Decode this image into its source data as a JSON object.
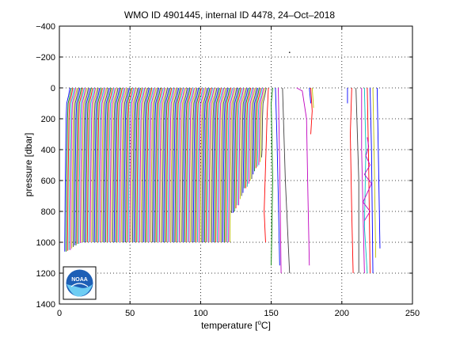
{
  "colors": {
    "series_palette": [
      "#0000ff",
      "#008000",
      "#ff0000",
      "#00bfbf",
      "#bf00bf",
      "#bfbf00",
      "#404040"
    ],
    "axis": "#000000",
    "logo_blue": "#1d5fb6",
    "logo_light": "#6ecdf3"
  },
  "logo": {
    "text": "NOAA",
    "icon": "noaa-logo-icon"
  },
  "chart_data": {
    "type": "line",
    "title": "WMO ID 4901445, internal ID 4478, 24–Oct–2018",
    "xlabel": "temperature [",
    "xlabel_sup": "o",
    "xlabel_end": "C]",
    "ylabel": "pressure [dbar]",
    "xlim": [
      0,
      250
    ],
    "ylim": [
      1400,
      -400
    ],
    "y_reversed": true,
    "grid": true,
    "x_ticks": [
      0,
      50,
      100,
      150,
      200,
      250
    ],
    "x_tick_labels": [
      "0",
      "50",
      "100",
      "150",
      "200",
      "250"
    ],
    "y_ticks": [
      -400,
      -200,
      0,
      200,
      400,
      600,
      800,
      1000,
      1200,
      1400
    ],
    "y_tick_labels": [
      "−400",
      "−200",
      "0",
      "200",
      "400",
      "600",
      "800",
      "1000",
      "1200",
      "1400"
    ],
    "main_group": {
      "description_count": 140,
      "x_start": 4,
      "x_step": 1,
      "profile_shape_temperature_offsets": [
        [
          0,
          3.5
        ],
        [
          50,
          2.5
        ],
        [
          100,
          1.2
        ],
        [
          200,
          0.8
        ],
        [
          400,
          0.5
        ],
        [
          600,
          0.2
        ],
        [
          800,
          0
        ],
        [
          1000,
          -0.2
        ]
      ],
      "bottom_pressures": [
        1060,
        1060,
        1055,
        1050,
        1050,
        1040,
        1030,
        1020,
        1020,
        1010,
        1010,
        1005,
        1000,
        1000,
        1000,
        1000,
        1000,
        1000,
        1000,
        1000,
        1000,
        1000,
        1000,
        1000,
        1000,
        1000,
        1000,
        1000,
        1000,
        1000,
        1000,
        1000,
        1000,
        1000,
        1000,
        1000,
        1000,
        1000,
        1000,
        1000,
        1000,
        1000,
        1000,
        1000,
        1000,
        1000,
        1000,
        1000,
        1000,
        1000,
        1000,
        1000,
        1000,
        1000,
        1000,
        1000,
        1000,
        1000,
        1000,
        1000,
        1000,
        1000,
        1000,
        1000,
        1000,
        1000,
        1000,
        1000,
        1000,
        1000,
        1000,
        1000,
        1000,
        1000,
        1000,
        1000,
        1000,
        1000,
        1000,
        1000,
        1000,
        1000,
        1000,
        1000,
        1000,
        1000,
        1000,
        1000,
        1000,
        1000,
        1000,
        1000,
        1000,
        1000,
        1000,
        1000,
        1000,
        1000,
        1000,
        1000,
        1000,
        1000,
        1000,
        1000,
        1000,
        1000,
        1000,
        1000,
        1000,
        1000,
        1000,
        1000,
        1000,
        1000,
        1000,
        1000,
        1000,
        1000,
        810,
        810,
        800,
        780,
        760,
        760,
        720,
        700,
        680,
        650,
        650,
        640,
        620,
        600,
        590,
        560,
        540,
        520,
        510,
        500,
        480,
        450
      ]
    },
    "outlier_profiles": [
      {
        "points": [
          [
            148,
            0
          ],
          [
            147,
            200
          ],
          [
            146,
            500
          ],
          [
            145,
            800
          ],
          [
            146,
            1000
          ]
        ],
        "color": "#ff0000"
      },
      {
        "points": [
          [
            151,
            0
          ],
          [
            150,
            100
          ],
          [
            151,
            600
          ],
          [
            150,
            1150
          ]
        ],
        "color": "#008000"
      },
      {
        "points": [
          [
            153,
            0
          ],
          [
            154,
            300
          ],
          [
            155,
            700
          ],
          [
            156,
            1150
          ]
        ],
        "color": "#0000ff"
      },
      {
        "points": [
          [
            155,
            0
          ],
          [
            156,
            500
          ],
          [
            157,
            1200
          ]
        ],
        "color": "#bf00bf"
      },
      {
        "points": [
          [
            158,
            0
          ],
          [
            160,
            600
          ],
          [
            163,
            1200
          ]
        ],
        "color": "#404040"
      },
      {
        "points": [
          [
            168,
            0
          ],
          [
            172,
            20
          ],
          [
            175,
            200
          ],
          [
            176,
            700
          ],
          [
            177,
            1150
          ]
        ],
        "color": "#bf00bf"
      },
      {
        "points": [
          [
            178,
            0
          ],
          [
            179,
            150
          ],
          [
            178,
            300
          ]
        ],
        "color": "#ff0000"
      },
      {
        "points": [
          [
            177,
            0
          ],
          [
            178,
            100
          ]
        ],
        "color": "#0000ff"
      },
      {
        "points": [
          [
            179,
            0
          ],
          [
            180,
            130
          ]
        ],
        "color": "#bfbf00"
      },
      {
        "points": [
          [
            204,
            0
          ],
          [
            204,
            100
          ]
        ],
        "color": "#0000ff"
      },
      {
        "points": [
          [
            207,
            0
          ],
          [
            206,
            300
          ],
          [
            207,
            800
          ],
          [
            208,
            1200
          ]
        ],
        "color": "#ff0000"
      },
      {
        "points": [
          [
            210,
            0
          ],
          [
            212,
            600
          ],
          [
            212,
            1200
          ]
        ],
        "color": "#404040"
      },
      {
        "points": [
          [
            214,
            0
          ],
          [
            214,
            400
          ],
          [
            216,
            1200
          ]
        ],
        "color": "#bf00bf"
      },
      {
        "points": [
          [
            216,
            0
          ],
          [
            217,
            400
          ],
          [
            216,
            900
          ],
          [
            218,
            1200
          ]
        ],
        "color": "#00bfbf"
      },
      {
        "points": [
          [
            218,
            0
          ],
          [
            219,
            500
          ],
          [
            220,
            1200
          ]
        ],
        "color": "#ff0000"
      },
      {
        "points": [
          [
            220,
            0
          ],
          [
            221,
            400
          ],
          [
            222,
            1200
          ]
        ],
        "color": "#0000ff"
      },
      {
        "points": [
          [
            222,
            0
          ],
          [
            223,
            500
          ],
          [
            224,
            1100
          ]
        ],
        "color": "#bfbf00"
      },
      {
        "points": [
          [
            225,
            0
          ],
          [
            226,
            500
          ],
          [
            227,
            1040
          ]
        ],
        "color": "#0000ff"
      },
      {
        "points": [
          [
            218,
            320
          ],
          [
            219,
            380
          ],
          [
            217,
            440
          ],
          [
            220,
            500
          ],
          [
            216,
            560
          ],
          [
            221,
            620
          ],
          [
            218,
            680
          ],
          [
            215,
            740
          ],
          [
            220,
            800
          ],
          [
            216,
            860
          ]
        ],
        "color": "#bf00bf"
      }
    ],
    "annotations": [
      {
        "x": 163,
        "y": -230,
        "text": "."
      }
    ]
  }
}
